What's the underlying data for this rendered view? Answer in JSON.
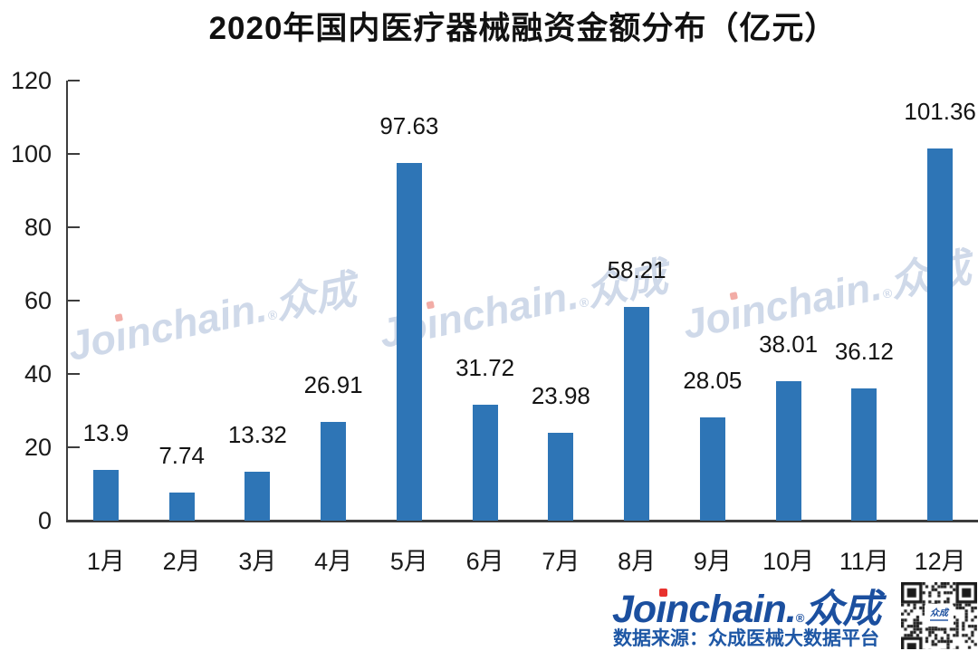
{
  "title": "2020年国内医疗器械融资金额分布（亿元）",
  "chart_data": {
    "type": "bar",
    "title": "2020年国内医疗器械融资金额分布（亿元）",
    "categories": [
      "1月",
      "2月",
      "3月",
      "4月",
      "5月",
      "6月",
      "7月",
      "8月",
      "9月",
      "10月",
      "11月",
      "12月"
    ],
    "values": [
      13.9,
      7.74,
      13.32,
      26.91,
      97.63,
      31.72,
      23.98,
      58.21,
      28.05,
      38.01,
      36.12,
      101.36
    ],
    "value_labels": [
      "13.9",
      "7.74",
      "13.32",
      "26.91",
      "97.63",
      "31.72",
      "23.98",
      "58.21",
      "28.05",
      "38.01",
      "36.12",
      "101.36"
    ],
    "xlabel": "",
    "ylabel": "",
    "ylim": [
      0,
      120
    ],
    "yticks": [
      0,
      20,
      40,
      60,
      80,
      100,
      120
    ],
    "grid": false,
    "legend_position": "none",
    "bar_color": "#2E75B6",
    "unit": "亿元"
  },
  "brand": {
    "jo": "Jo",
    "i_dotless": "ı",
    "nchain": "nchain",
    "period": ".",
    "reg": "®",
    "cn": "众成"
  },
  "footer": {
    "source_label": "数据来源：众成医械大数据平台",
    "qr_label": "众成"
  },
  "colors": {
    "bar": "#2E75B6",
    "axis": "#3d3d3d",
    "logo_blue": "#1b4f9f",
    "source_blue": "#1e57a5",
    "watermark": "#cfd9e9",
    "watermark_i_dot": "#f2aca6",
    "logo_i_dot": "#e8322e"
  }
}
